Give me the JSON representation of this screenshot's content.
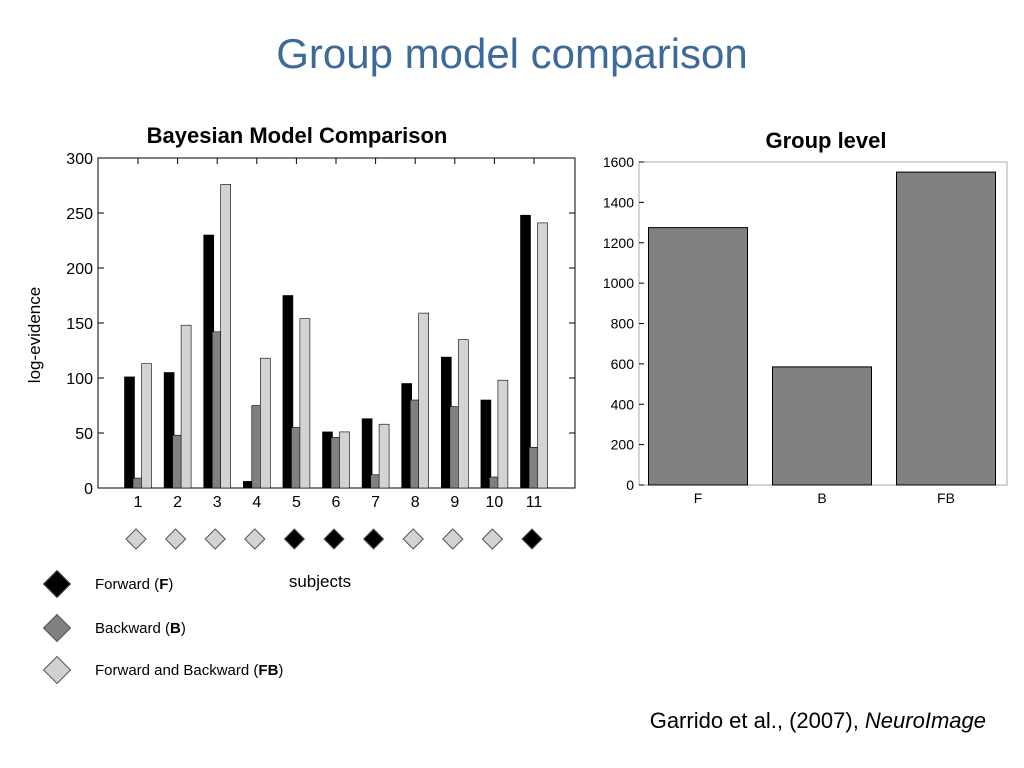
{
  "slide": {
    "title": "Group model comparison",
    "citation": {
      "text": "Garrido et al., (2007), ",
      "journal": "NeuroImage"
    }
  },
  "legend": [
    {
      "prefix": "Forward (",
      "code": "F",
      "suffix": ")",
      "color": "#000000"
    },
    {
      "prefix": "Backward (",
      "code": "B",
      "suffix": ")",
      "color": "#808080"
    },
    {
      "prefix": "Forward and Backward (",
      "code": "FB",
      "suffix": ")",
      "color": "#d0d0d0"
    }
  ],
  "chart_data": [
    {
      "type": "bar",
      "title": "Bayesian Model Comparison",
      "xlabel": "subjects",
      "ylabel": "log-evidence",
      "ylim": [
        0,
        300
      ],
      "yticks": [
        0,
        50,
        100,
        150,
        200,
        250,
        300
      ],
      "categories": [
        "1",
        "2",
        "3",
        "4",
        "5",
        "6",
        "7",
        "8",
        "9",
        "10",
        "11"
      ],
      "series": [
        {
          "color": "#000000",
          "values": [
            101,
            105,
            230,
            6,
            175,
            51,
            63,
            95,
            119,
            80,
            248
          ]
        },
        {
          "color": "#808080",
          "values": [
            9,
            48,
            142,
            75,
            55,
            46,
            12,
            80,
            74,
            10,
            37
          ]
        },
        {
          "color": "#d3d3d3",
          "values": [
            113,
            148,
            276,
            118,
            154,
            51,
            58,
            159,
            135,
            98,
            241
          ]
        }
      ],
      "winning_model": [
        "FB",
        "FB",
        "FB",
        "FB",
        "F",
        "F",
        "F",
        "FB",
        "FB",
        "FB",
        "F"
      ],
      "grid": false
    },
    {
      "type": "bar",
      "title": "Group level",
      "categories": [
        "F",
        "B",
        "FB"
      ],
      "values": [
        1275,
        585,
        1550
      ],
      "ylim": [
        0,
        1600
      ],
      "yticks": [
        0,
        200,
        400,
        600,
        800,
        1000,
        1200,
        1400,
        1600
      ],
      "bar_color": "#808080",
      "grid": false
    }
  ]
}
